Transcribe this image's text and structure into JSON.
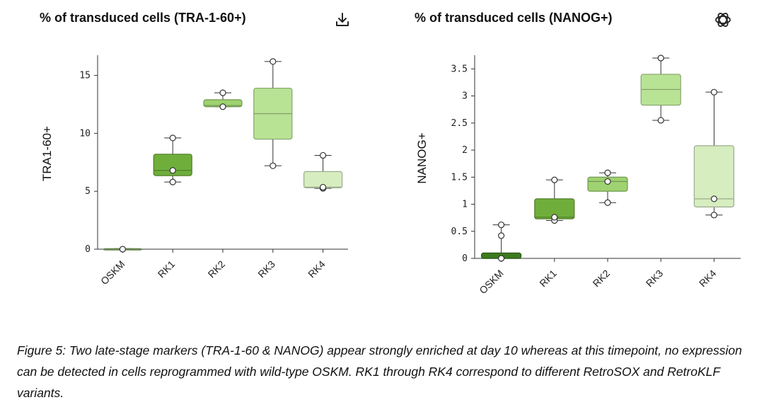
{
  "chart_data": [
    {
      "type": "box",
      "title": "% of transduced cells (TRA-1-60+)",
      "ylabel": "TRA1-60+",
      "xlabel": "",
      "ylim": [
        0,
        16.5
      ],
      "yticks": [
        0,
        5,
        10,
        15
      ],
      "ytick_labels": [
        "0",
        "5",
        "10",
        "15"
      ],
      "categories": [
        "OSKM",
        "RK1",
        "RK2",
        "RK3",
        "RK4"
      ],
      "boxes": [
        {
          "category": "OSKM",
          "min": 0.0,
          "q1": 0.0,
          "median": 0.0,
          "q3": 0.05,
          "max": 0.05,
          "points": [
            0.0
          ]
        },
        {
          "category": "RK1",
          "min": 5.8,
          "q1": 6.35,
          "median": 6.8,
          "q3": 8.2,
          "max": 9.6,
          "points": [
            5.8,
            6.8,
            9.6
          ]
        },
        {
          "category": "RK2",
          "min": 12.3,
          "q1": 12.3,
          "median": 12.4,
          "q3": 12.9,
          "max": 13.5,
          "points": [
            12.3,
            13.5
          ]
        },
        {
          "category": "RK3",
          "min": 7.2,
          "q1": 9.5,
          "median": 11.7,
          "q3": 13.9,
          "max": 16.2,
          "points": [
            7.2,
            16.2
          ]
        },
        {
          "category": "RK4",
          "min": 5.25,
          "q1": 5.3,
          "median": 5.35,
          "q3": 6.7,
          "max": 8.1,
          "points": [
            5.25,
            5.35,
            8.1
          ]
        }
      ],
      "colors": [
        "#8fb86e",
        "#6fae3b",
        "#9fd270",
        "#b9e394",
        "#d6edc0"
      ],
      "grid": false,
      "legend": "none"
    },
    {
      "type": "box",
      "title": "% of transduced cells (NANOG+)",
      "ylabel": "NANOG+",
      "xlabel": "",
      "ylim": [
        0,
        3.7
      ],
      "yticks": [
        0,
        0.5,
        1,
        1.5,
        2,
        2.5,
        3,
        3.5
      ],
      "ytick_labels": [
        "0",
        "0.5",
        "1",
        "1.5",
        "2",
        "2.5",
        "3",
        "3.5"
      ],
      "categories": [
        "OSKM",
        "RK1",
        "RK2",
        "RK3",
        "RK4"
      ],
      "boxes": [
        {
          "category": "OSKM",
          "min": 0.0,
          "q1": 0.0,
          "median": 0.0,
          "q3": 0.1,
          "max": 0.62,
          "points": [
            0.0,
            0.42,
            0.62
          ]
        },
        {
          "category": "RK1",
          "min": 0.7,
          "q1": 0.73,
          "median": 0.76,
          "q3": 1.1,
          "max": 1.45,
          "points": [
            0.7,
            0.76,
            1.45
          ]
        },
        {
          "category": "RK2",
          "min": 1.03,
          "q1": 1.24,
          "median": 1.42,
          "q3": 1.5,
          "max": 1.58,
          "points": [
            1.03,
            1.42,
            1.58
          ]
        },
        {
          "category": "RK3",
          "min": 2.55,
          "q1": 2.83,
          "median": 3.12,
          "q3": 3.4,
          "max": 3.7,
          "points": [
            2.55,
            3.7
          ]
        },
        {
          "category": "RK4",
          "min": 0.8,
          "q1": 0.95,
          "median": 1.1,
          "q3": 2.08,
          "max": 3.07,
          "points": [
            0.8,
            1.1,
            3.07
          ]
        }
      ],
      "colors": [
        "#3c7a1e",
        "#6fae3b",
        "#9fd270",
        "#b9e394",
        "#d6edc0"
      ],
      "grid": false,
      "legend": "none"
    }
  ],
  "icons": {
    "download": "download-icon",
    "logo": "openai-logo-icon"
  },
  "caption": "Figure 5: Two late-stage markers (TRA-1-60 & NANOG) appear strongly enriched at day 10 whereas at this timepoint, no expression can be detected in cells reprogrammed with wild-type OSKM. RK1 through RK4 correspond to different RetroSOX and RetroKLF variants."
}
